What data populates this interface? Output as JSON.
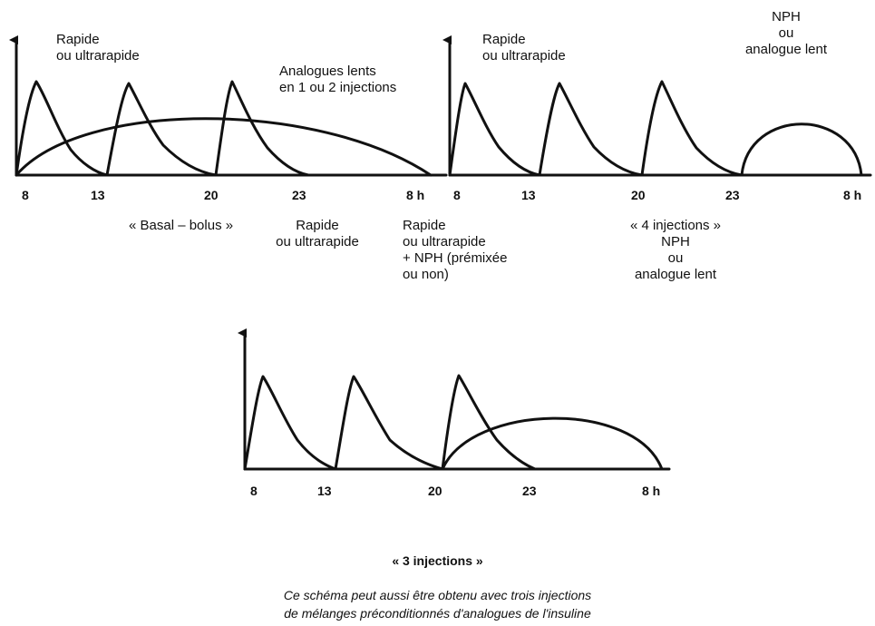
{
  "panel_a": {
    "label_rapide": [
      "Rapide",
      "ou ultrarapide"
    ],
    "label_lents": [
      "Analogues lents",
      "en 1 ou 2 injections"
    ],
    "ticks": [
      "8",
      "13",
      "20",
      "23",
      "8 h"
    ],
    "caption": "« Basal – bolus »"
  },
  "panel_b": {
    "label_rapide": [
      "Rapide",
      "ou ultrarapide"
    ],
    "label_nph": [
      "NPH",
      "ou",
      "analogue lent"
    ],
    "ticks": [
      "8",
      "13",
      "20",
      "23",
      "8 h"
    ],
    "caption": "« 4 injections »",
    "sub_nph": [
      "NPH",
      "ou",
      "analogue lent"
    ]
  },
  "middle_labels": {
    "rapide": [
      "Rapide",
      "ou ultrarapide"
    ],
    "rapide_nph": [
      "Rapide",
      "ou ultrarapide",
      "+ NPH (prémixée",
      "ou non)"
    ]
  },
  "panel_c": {
    "ticks": [
      "8",
      "13",
      "20",
      "23",
      "8 h"
    ],
    "caption": "« 3 injections »",
    "note": [
      "Ce schéma peut aussi être obtenu avec trois injections",
      "de mélanges préconditionnés d'analogues de l'insuline"
    ]
  },
  "colors": {
    "ink": "#111111",
    "background": "#ffffff"
  }
}
